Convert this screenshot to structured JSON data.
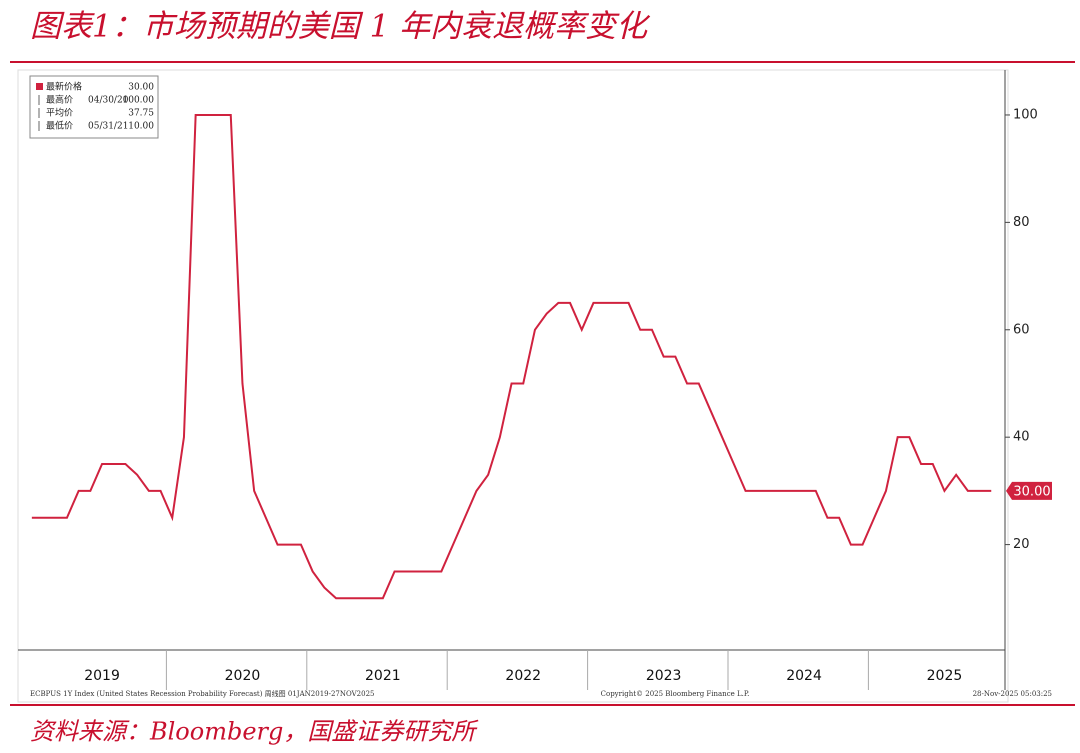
{
  "chart_data": {
    "type": "line",
    "title": "图表1：市场预期的美国 1 年内衰退概率变化",
    "source": "资料来源：Bloomberg，国盛证券研究所",
    "categories": [
      null,
      null,
      null,
      null,
      null,
      null,
      "2019",
      null,
      null,
      null,
      null,
      null,
      null,
      null,
      null,
      null,
      null,
      null,
      "2020",
      null,
      null,
      null,
      null,
      null,
      null,
      null,
      null,
      null,
      null,
      null,
      "2021",
      null,
      null,
      null,
      null,
      null,
      null,
      null,
      null,
      null,
      null,
      null,
      "2022",
      null,
      null,
      null,
      null,
      null,
      null,
      null,
      null,
      null,
      null,
      null,
      "2023",
      null,
      null,
      null,
      null,
      null,
      null,
      null,
      null,
      null,
      null,
      null,
      "2024",
      null,
      null,
      null,
      null,
      null,
      null,
      null,
      null,
      null,
      null,
      null,
      "2025",
      null,
      null,
      null,
      null
    ],
    "series": [
      {
        "name": "最新价格",
        "color": "#d0223f",
        "values": [
          25,
          25,
          25,
          25,
          30,
          30,
          35,
          35,
          35,
          33,
          30,
          30,
          25,
          40,
          100,
          100,
          100,
          100,
          50,
          30,
          25,
          20,
          20,
          20,
          15,
          12,
          10,
          10,
          10,
          10,
          10,
          15,
          15,
          15,
          15,
          15,
          20,
          25,
          30,
          33,
          40,
          50,
          50,
          60,
          63,
          65,
          65,
          60,
          65,
          65,
          65,
          65,
          60,
          60,
          55,
          55,
          50,
          50,
          45,
          40,
          35,
          30,
          30,
          30,
          30,
          30,
          30,
          30,
          25,
          25,
          20,
          20,
          25,
          30,
          40,
          40,
          35,
          35,
          30,
          33,
          30,
          30,
          30
        ]
      }
    ],
    "ylim": [
      0,
      108
    ],
    "yticks": [
      20,
      40,
      60,
      80,
      100
    ],
    "last_value_label": "30.00",
    "stats": [
      {
        "label": "最新价格",
        "date": "",
        "value": "30.00"
      },
      {
        "label": "最高价",
        "date": "04/30/20",
        "value": "100.00"
      },
      {
        "label": "平均价",
        "date": "",
        "value": "37.75"
      },
      {
        "label": "最低价",
        "date": "05/31/21",
        "value": "10.00"
      }
    ],
    "footer_left": "ECBPUS 1Y Index (United States Recession Probability Forecast) 周线图 01JAN2019-27NOV2025",
    "footer_center": "Copyright© 2025 Bloomberg Finance L.P.",
    "footer_right": "28-Nov-2025 05:03:25"
  }
}
